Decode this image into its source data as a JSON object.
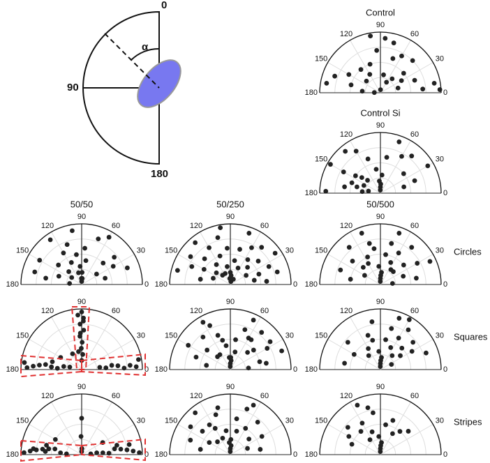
{
  "diagram": {
    "labels": [
      "0",
      "90",
      "180",
      "α"
    ]
  },
  "chart_data": [
    {
      "type": "polar-scatter",
      "title": "Control",
      "thetaticks": [
        0,
        30,
        60,
        90,
        120,
        150,
        180
      ],
      "rlim": [
        0,
        1
      ],
      "color": "#222",
      "theta": [
        170,
        160,
        150,
        165,
        175,
        178,
        100,
        95,
        85,
        75,
        70,
        60,
        45,
        40,
        30,
        20,
        10,
        5,
        15,
        130,
        120,
        110,
        140,
        80,
        50,
        3,
        88,
        60
      ],
      "r": [
        0.9,
        0.8,
        0.6,
        0.5,
        0.3,
        0.1,
        0.95,
        0.7,
        0.9,
        0.85,
        0.6,
        0.7,
        0.75,
        0.5,
        0.4,
        0.6,
        0.9,
        0.7,
        0.3,
        0.5,
        0.35,
        0.5,
        0.3,
        0.3,
        0.3,
        0.98,
        0.05,
        0.2
      ]
    },
    {
      "type": "polar-scatter",
      "title": "Control Si",
      "thetaticks": [
        0,
        30,
        60,
        90,
        120,
        150,
        180
      ],
      "rlim": [
        0,
        1
      ],
      "color": "#222",
      "theta": [
        160,
        165,
        170,
        150,
        155,
        145,
        140,
        135,
        175,
        178,
        170,
        120,
        110,
        100,
        95,
        90,
        85,
        80,
        70,
        60,
        50,
        40,
        30,
        20,
        15,
        130,
        150,
        92,
        88
      ],
      "r": [
        0.5,
        0.4,
        0.6,
        0.7,
        0.3,
        0.5,
        0.4,
        0.3,
        0.3,
        0.9,
        0.2,
        0.8,
        0.6,
        0.4,
        0.2,
        0.1,
        0.3,
        0.6,
        0.9,
        0.7,
        0.8,
        0.5,
        0.9,
        0.6,
        0.4,
        0.9,
        0.95,
        0.05,
        0.15
      ]
    },
    {
      "type": "polar-scatter",
      "title": "50/50",
      "thetaticks": [
        0,
        30,
        60,
        90,
        120,
        150,
        180
      ],
      "rlim": [
        0,
        1
      ],
      "color": "#222",
      "theta": [
        170,
        160,
        150,
        140,
        135,
        125,
        120,
        115,
        110,
        105,
        100,
        95,
        92,
        88,
        85,
        80,
        70,
        60,
        45,
        40,
        35,
        30,
        20,
        15,
        175,
        165,
        145,
        100,
        90,
        85
      ],
      "r": [
        0.6,
        0.4,
        0.8,
        0.5,
        0.3,
        0.9,
        0.6,
        0.4,
        0.7,
        0.2,
        0.5,
        0.3,
        0.1,
        0.2,
        0.6,
        0.4,
        0.8,
        0.9,
        0.5,
        0.7,
        0.3,
        0.6,
        0.8,
        0.4,
        0.2,
        0.8,
        0.2,
        0.9,
        0.05,
        0.1
      ]
    },
    {
      "type": "polar-scatter",
      "title": "50/250",
      "thetaticks": [
        0,
        30,
        60,
        90,
        120,
        150,
        180
      ],
      "rlim": [
        0,
        1
      ],
      "color": "#222",
      "theta": [
        170,
        165,
        160,
        155,
        150,
        145,
        140,
        135,
        130,
        125,
        120,
        115,
        110,
        105,
        100,
        95,
        90,
        85,
        80,
        75,
        70,
        65,
        60,
        55,
        50,
        45,
        40,
        35,
        30,
        25,
        20,
        15,
        10,
        5,
        100,
        80,
        95,
        130,
        60
      ],
      "r": [
        0.5,
        0.9,
        0.3,
        0.7,
        0.5,
        0.8,
        0.3,
        0.6,
        0.9,
        0.4,
        0.7,
        0.2,
        0.5,
        0.8,
        0.3,
        0.1,
        0.2,
        0.15,
        0.4,
        0.6,
        0.9,
        0.3,
        0.7,
        0.5,
        0.8,
        0.4,
        0.6,
        0.9,
        0.3,
        0.7,
        0.5,
        0.8,
        0.4,
        0.6,
        0.95,
        0.05,
        0.6,
        0.2,
        0.1
      ]
    },
    {
      "type": "polar-scatter",
      "title": "50/500",
      "row_label": "Circles",
      "thetaticks": [
        0,
        30,
        60,
        90,
        120,
        150,
        180
      ],
      "rlim": [
        0,
        1
      ],
      "color": "#222",
      "theta": [
        170,
        160,
        150,
        140,
        130,
        120,
        110,
        100,
        95,
        90,
        85,
        80,
        75,
        70,
        65,
        60,
        50,
        45,
        40,
        30,
        20,
        10,
        5,
        115,
        105,
        92,
        88,
        135,
        55,
        25
      ],
      "r": [
        0.5,
        0.7,
        0.3,
        0.6,
        0.8,
        0.4,
        0.9,
        0.6,
        0.3,
        0.1,
        0.2,
        0.5,
        0.7,
        0.9,
        0.4,
        0.6,
        0.8,
        0.3,
        0.5,
        0.7,
        0.4,
        0.6,
        0.2,
        0.5,
        0.7,
        0.05,
        0.15,
        0.4,
        0.3,
        0.9
      ]
    },
    {
      "type": "polar-scatter",
      "thetaticks": [
        0,
        30,
        60,
        90,
        120,
        150,
        180
      ],
      "rlim": [
        0,
        1
      ],
      "color": "#222",
      "theta": [
        90,
        88,
        92,
        87,
        93,
        89,
        91,
        86,
        94,
        90,
        88,
        92,
        178,
        176,
        174,
        172,
        175,
        177,
        170,
        168,
        3,
        5,
        2,
        6,
        8,
        4,
        7,
        10,
        173,
        165,
        150,
        120,
        100
      ],
      "r": [
        0.95,
        0.85,
        0.75,
        0.65,
        0.55,
        0.45,
        0.35,
        0.25,
        0.9,
        0.15,
        0.8,
        0.6,
        0.9,
        0.8,
        0.7,
        0.6,
        0.5,
        0.4,
        0.3,
        0.2,
        0.9,
        0.8,
        0.7,
        0.6,
        0.5,
        0.4,
        0.3,
        0.95,
        0.95,
        0.5,
        0.4,
        0.3,
        0.3
      ]
    },
    {
      "type": "polar-scatter",
      "thetaticks": [
        0,
        30,
        60,
        90,
        120,
        150,
        180
      ],
      "rlim": [
        0,
        1
      ],
      "color": "#222",
      "theta": [
        170,
        160,
        150,
        140,
        130,
        125,
        120,
        110,
        100,
        95,
        90,
        85,
        80,
        70,
        60,
        50,
        45,
        40,
        30,
        20,
        10,
        5,
        115,
        105,
        92,
        88,
        135,
        75,
        65,
        55,
        35,
        15
      ],
      "r": [
        0.4,
        0.6,
        0.8,
        0.5,
        0.7,
        0.3,
        0.9,
        0.6,
        0.4,
        0.2,
        0.1,
        0.15,
        0.5,
        0.7,
        0.6,
        0.8,
        0.4,
        0.5,
        0.7,
        0.9,
        0.6,
        0.3,
        0.8,
        0.5,
        0.05,
        0.2,
        0.3,
        0.3,
        0.9,
        0.6,
        0.8,
        0.5
      ]
    },
    {
      "type": "polar-scatter",
      "row_label": "Squares",
      "thetaticks": [
        0,
        30,
        60,
        90,
        120,
        150,
        180
      ],
      "rlim": [
        0,
        1
      ],
      "color": "#222",
      "theta": [
        170,
        150,
        140,
        120,
        110,
        100,
        95,
        90,
        85,
        80,
        75,
        70,
        65,
        60,
        55,
        50,
        45,
        40,
        35,
        30,
        25,
        20,
        130,
        105,
        92,
        88,
        60
      ],
      "r": [
        0.6,
        0.5,
        0.7,
        0.4,
        0.6,
        0.8,
        0.3,
        0.1,
        0.2,
        0.5,
        0.7,
        0.9,
        0.4,
        0.6,
        0.8,
        0.3,
        0.5,
        0.7,
        0.4,
        0.6,
        0.2,
        0.8,
        0.3,
        0.5,
        0.05,
        0.15,
        0.95
      ]
    },
    {
      "type": "polar-scatter",
      "thetaticks": [
        0,
        30,
        60,
        90,
        120,
        150,
        180
      ],
      "rlim": [
        0,
        1
      ],
      "color": "#222",
      "theta": [
        178,
        176,
        174,
        172,
        170,
        168,
        175,
        177,
        173,
        165,
        2,
        4,
        6,
        8,
        10,
        3,
        5,
        7,
        12,
        15,
        90,
        92,
        88,
        91,
        150,
        30,
        175,
        5
      ],
      "r": [
        0.95,
        0.85,
        0.75,
        0.65,
        0.55,
        0.45,
        0.35,
        0.25,
        0.8,
        0.6,
        0.95,
        0.85,
        0.75,
        0.65,
        0.55,
        0.45,
        0.35,
        0.25,
        0.8,
        0.6,
        0.6,
        0.3,
        0.1,
        0.05,
        0.5,
        0.4,
        0.6,
        0.15
      ]
    },
    {
      "type": "polar-scatter",
      "thetaticks": [
        0,
        30,
        60,
        90,
        120,
        150,
        180
      ],
      "rlim": [
        0,
        1
      ],
      "color": "#222",
      "theta": [
        170,
        160,
        150,
        145,
        140,
        130,
        120,
        115,
        110,
        100,
        95,
        90,
        85,
        80,
        70,
        60,
        50,
        40,
        30,
        20,
        10,
        135,
        125,
        105,
        92,
        88,
        75,
        65
      ],
      "r": [
        0.5,
        0.7,
        0.4,
        0.8,
        0.6,
        0.9,
        0.5,
        0.3,
        0.7,
        0.4,
        0.2,
        0.1,
        0.15,
        0.6,
        0.8,
        0.5,
        0.7,
        0.4,
        0.6,
        0.3,
        0.5,
        0.3,
        0.6,
        0.8,
        0.05,
        0.25,
        0.4,
        0.9
      ]
    },
    {
      "type": "polar-scatter",
      "row_label": "Stripes",
      "thetaticks": [
        0,
        30,
        60,
        90,
        120,
        150,
        180
      ],
      "rlim": [
        0,
        1
      ],
      "color": "#222",
      "theta": [
        160,
        150,
        140,
        130,
        120,
        110,
        100,
        95,
        90,
        85,
        80,
        70,
        60,
        50,
        40,
        115,
        105,
        125,
        92,
        88
      ],
      "r": [
        0.5,
        0.6,
        0.7,
        0.5,
        0.6,
        0.4,
        0.7,
        0.3,
        0.1,
        0.2,
        0.5,
        0.6,
        0.4,
        0.5,
        0.6,
        0.9,
        0.8,
        0.3,
        0.05,
        0.15
      ]
    }
  ]
}
